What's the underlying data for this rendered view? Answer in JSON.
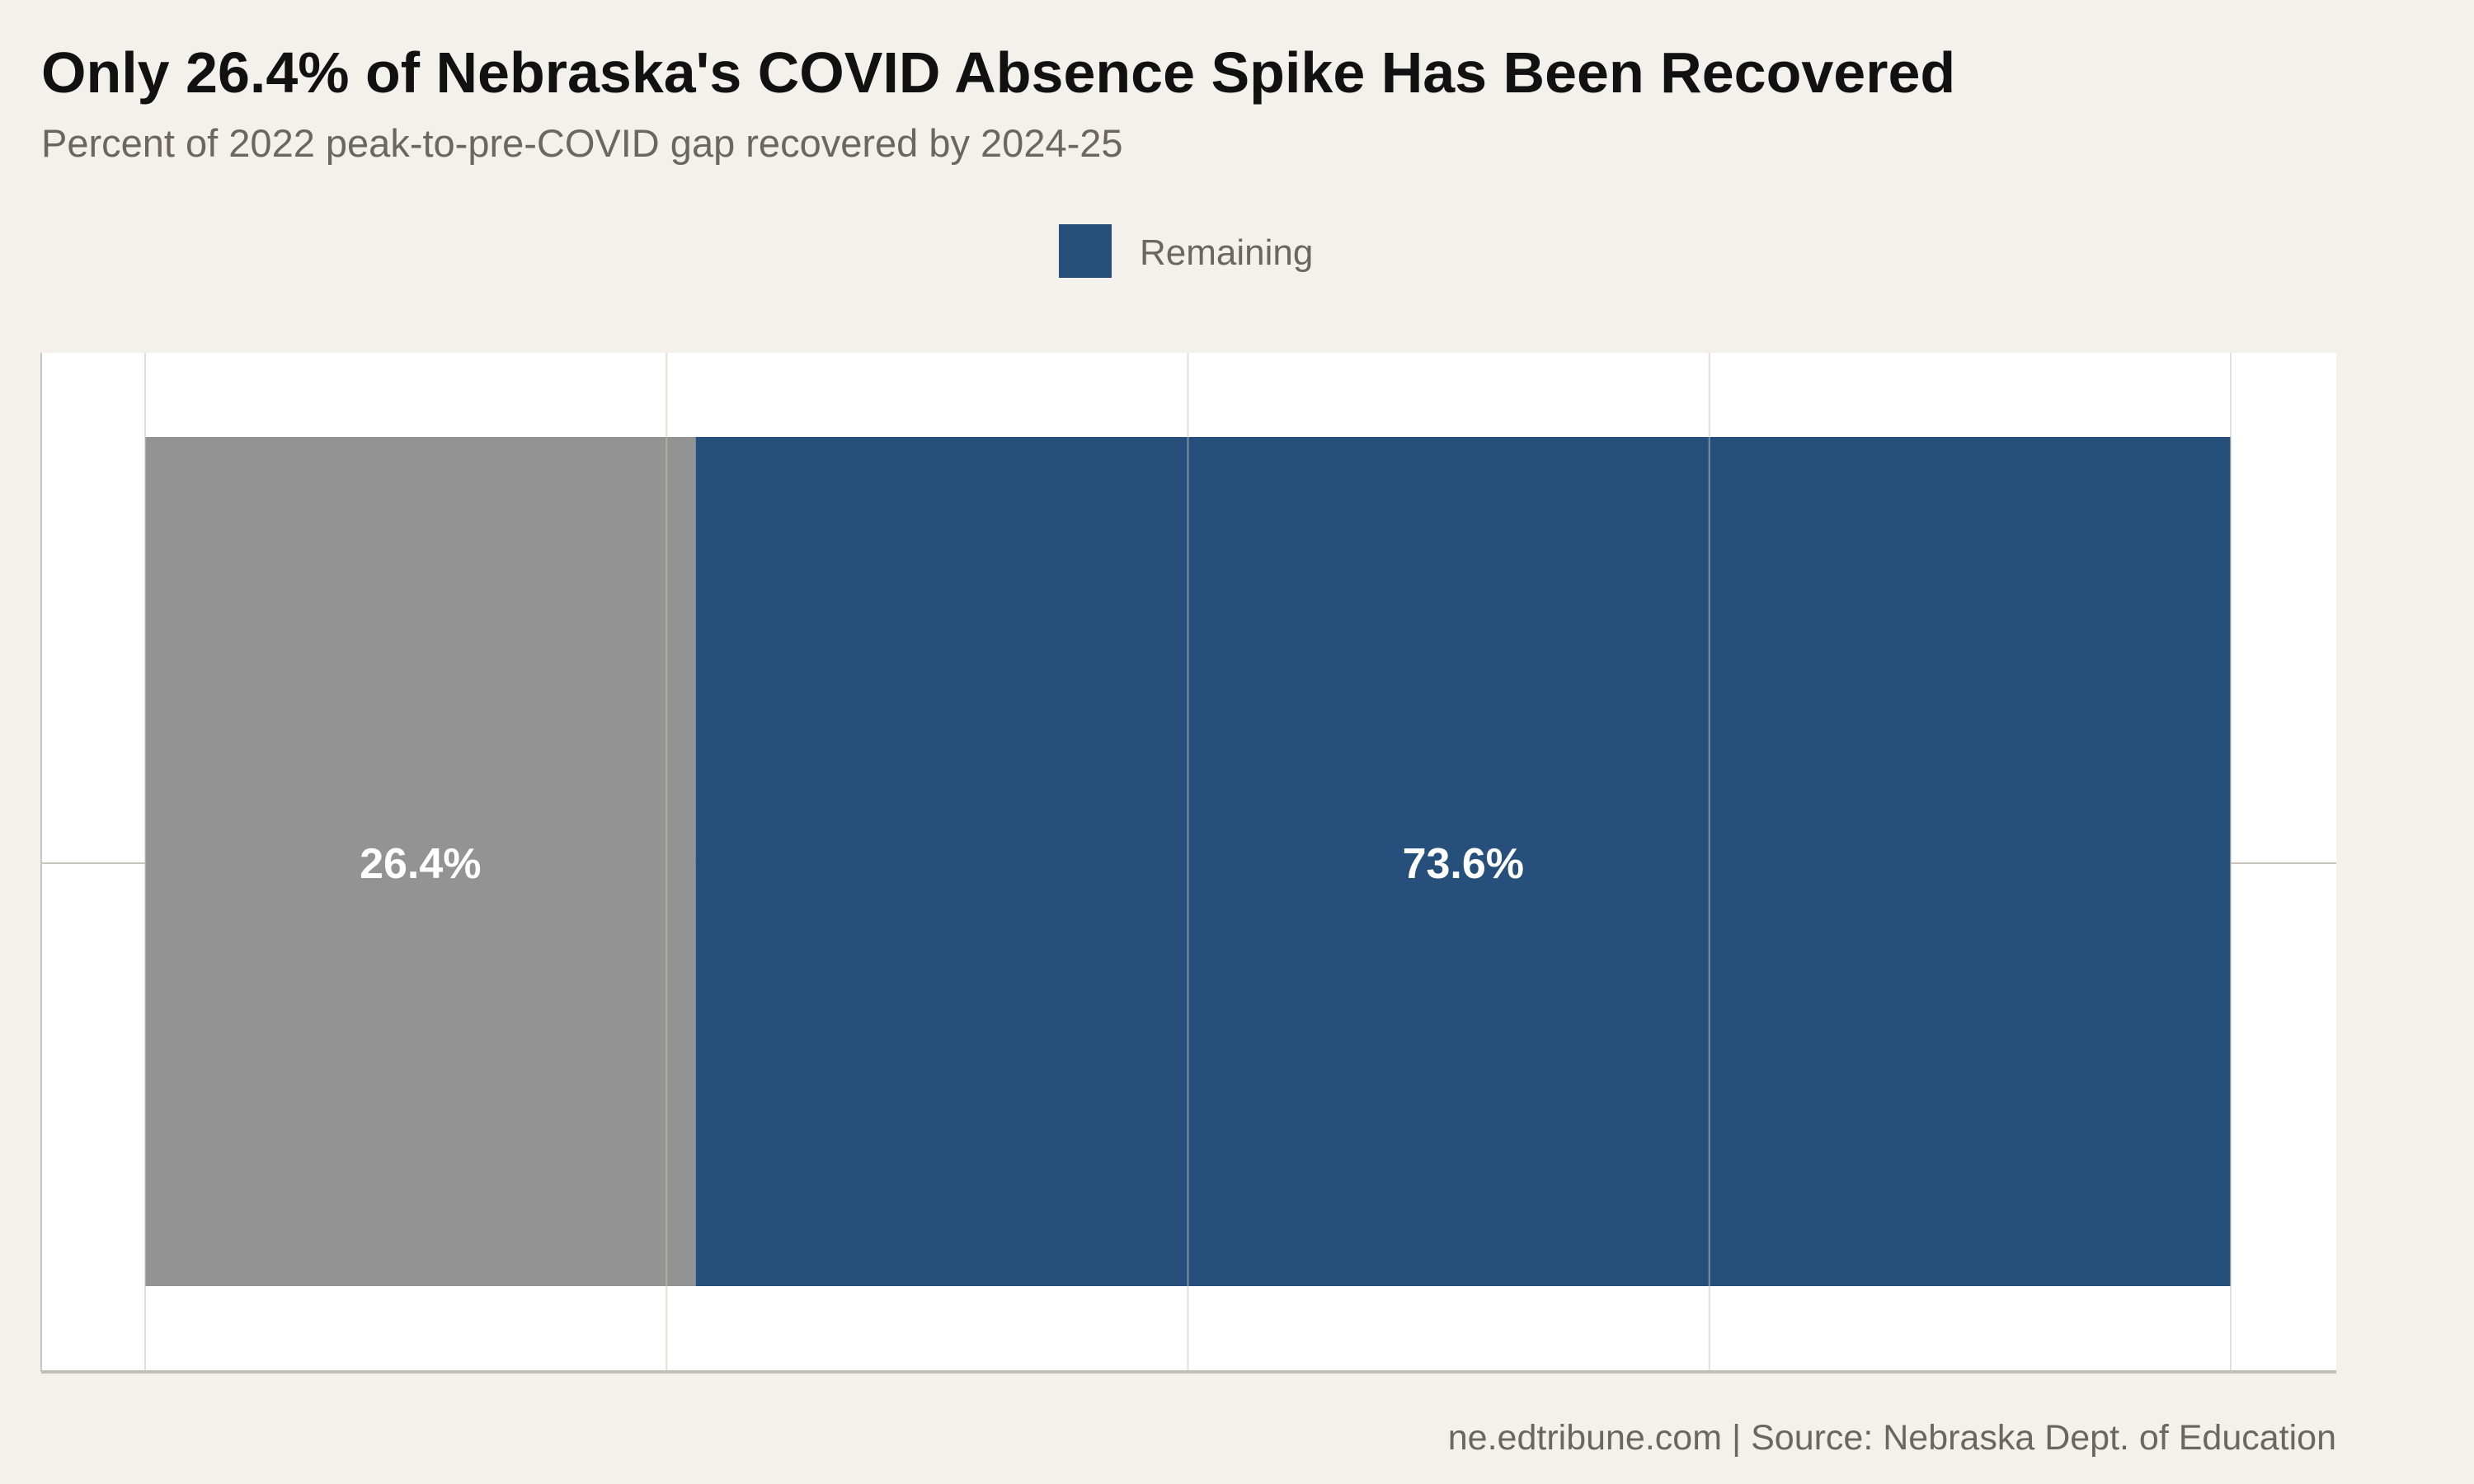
{
  "chart_data": {
    "type": "bar",
    "orientation": "horizontal-stacked",
    "title": "Only 26.4% of Nebraska's COVID Absence Spike Has Been Recovered",
    "subtitle": "Percent of 2022 peak-to-pre-COVID gap recovered by 2024-25",
    "caption": "ne.edtribune.com | Source: Nebraska Dept. of Education",
    "xlim": [
      0,
      100
    ],
    "x_gridlines": [
      0,
      25,
      50,
      75,
      100
    ],
    "grid": true,
    "legend": {
      "position": "top",
      "entries": [
        {
          "name": "Remaining",
          "color": "#26507b"
        }
      ]
    },
    "segments": [
      {
        "value": 26.4,
        "label": "26.4%",
        "color": "#939393"
      },
      {
        "value": 73.6,
        "label": "73.6%",
        "color": "#26507b"
      }
    ]
  },
  "colors": {
    "background": "#f4f1ec",
    "panel": "#ffffff",
    "grid": "#c9c5bc"
  }
}
